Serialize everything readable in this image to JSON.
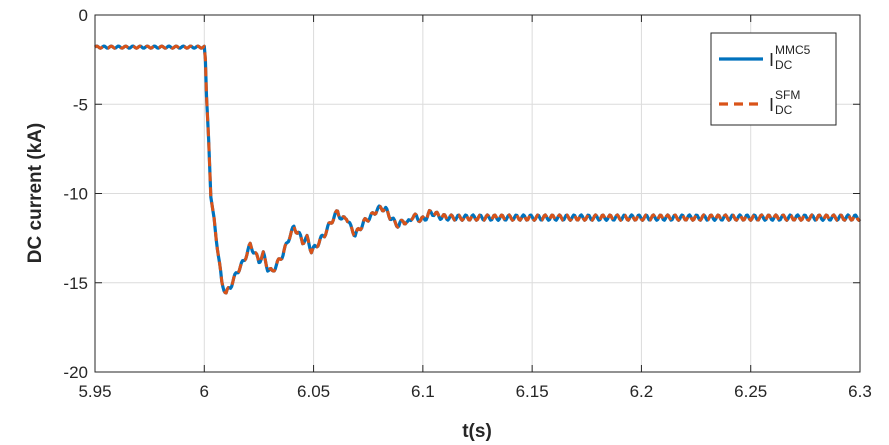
{
  "chart_data": {
    "type": "line",
    "title": "",
    "xlabel": "t(s)",
    "ylabel": "DC current (kA)",
    "xlim": [
      5.95,
      6.3
    ],
    "ylim": [
      -20,
      0
    ],
    "xticks": [
      5.95,
      6.0,
      6.05,
      6.1,
      6.15,
      6.2,
      6.25,
      6.3
    ],
    "xtick_labels": [
      "5.95",
      "6",
      "6.05",
      "6.1",
      "6.15",
      "6.2",
      "6.25",
      "6.3"
    ],
    "yticks": [
      0,
      -5,
      -10,
      -15,
      -20
    ],
    "ytick_labels": [
      "0",
      "-5",
      "-10",
      "-15",
      "-20"
    ],
    "grid": true,
    "legend_position": "top-right",
    "series": [
      {
        "name": "I_DC^MMC5",
        "legend_base": "I",
        "legend_sup": "MMC5",
        "legend_sub": "DC",
        "color": "#0072BD",
        "style": "solid",
        "x": [
          5.95,
          6.0,
          6.0005,
          6.001,
          6.002,
          6.003,
          6.004,
          6.006,
          6.008,
          6.01,
          6.012,
          6.015,
          6.018,
          6.021,
          6.023,
          6.025,
          6.027,
          6.029,
          6.031,
          6.033,
          6.036,
          6.039,
          6.041,
          6.043,
          6.045,
          6.047,
          6.049,
          6.051,
          6.053,
          6.055,
          6.057,
          6.059,
          6.061,
          6.063,
          6.065,
          6.067,
          6.069,
          6.071,
          6.073,
          6.075,
          6.077,
          6.079,
          6.081,
          6.083,
          6.085,
          6.087,
          6.089,
          6.091,
          6.093,
          6.095,
          6.097,
          6.099,
          6.101,
          6.103,
          6.105,
          6.108,
          6.112,
          6.3
        ],
        "y": [
          -1.8,
          -1.8,
          -2.5,
          -4.5,
          -7.0,
          -10.2,
          -11.0,
          -13.0,
          -15.0,
          -15.6,
          -15.2,
          -14.4,
          -13.8,
          -12.9,
          -13.3,
          -13.8,
          -13.4,
          -14.2,
          -14.4,
          -14.0,
          -13.4,
          -12.4,
          -11.9,
          -12.2,
          -12.7,
          -12.5,
          -13.2,
          -13.0,
          -12.6,
          -12.3,
          -11.8,
          -11.4,
          -11.0,
          -11.5,
          -11.3,
          -11.9,
          -12.3,
          -12.0,
          -11.6,
          -11.4,
          -11.2,
          -10.9,
          -10.8,
          -10.9,
          -11.3,
          -11.6,
          -11.8,
          -11.5,
          -11.7,
          -11.3,
          -11.3,
          -11.5,
          -11.4,
          -11.1,
          -11.1,
          -11.3,
          -11.35,
          -11.35
        ],
        "ripple_amplitude": 0.15,
        "ripple_period": 0.0033
      },
      {
        "name": "I_DC^SFM",
        "legend_base": "I",
        "legend_sup": "SFM",
        "legend_sub": "DC",
        "color": "#D95319",
        "style": "dashed",
        "x": [
          5.95,
          6.0,
          6.0005,
          6.001,
          6.002,
          6.003,
          6.004,
          6.006,
          6.008,
          6.01,
          6.012,
          6.015,
          6.018,
          6.021,
          6.023,
          6.025,
          6.027,
          6.029,
          6.031,
          6.033,
          6.036,
          6.039,
          6.041,
          6.043,
          6.045,
          6.047,
          6.049,
          6.051,
          6.053,
          6.055,
          6.057,
          6.059,
          6.061,
          6.063,
          6.065,
          6.067,
          6.069,
          6.071,
          6.073,
          6.075,
          6.077,
          6.079,
          6.081,
          6.083,
          6.085,
          6.087,
          6.089,
          6.091,
          6.093,
          6.095,
          6.097,
          6.099,
          6.101,
          6.103,
          6.105,
          6.108,
          6.112,
          6.3
        ],
        "y": [
          -1.8,
          -1.8,
          -2.5,
          -4.5,
          -7.0,
          -10.2,
          -11.0,
          -13.0,
          -15.0,
          -15.6,
          -15.2,
          -14.4,
          -13.8,
          -12.9,
          -13.3,
          -13.8,
          -13.4,
          -14.2,
          -14.4,
          -14.0,
          -13.4,
          -12.4,
          -11.9,
          -12.2,
          -12.7,
          -12.5,
          -13.2,
          -13.0,
          -12.6,
          -12.3,
          -11.8,
          -11.4,
          -11.0,
          -11.5,
          -11.3,
          -11.9,
          -12.3,
          -12.0,
          -11.6,
          -11.4,
          -11.2,
          -10.9,
          -10.8,
          -10.9,
          -11.3,
          -11.6,
          -11.8,
          -11.5,
          -11.7,
          -11.3,
          -11.3,
          -11.5,
          -11.4,
          -11.1,
          -11.1,
          -11.3,
          -11.35,
          -11.35
        ],
        "ripple_amplitude": 0.15,
        "ripple_period": 0.0033
      }
    ]
  }
}
